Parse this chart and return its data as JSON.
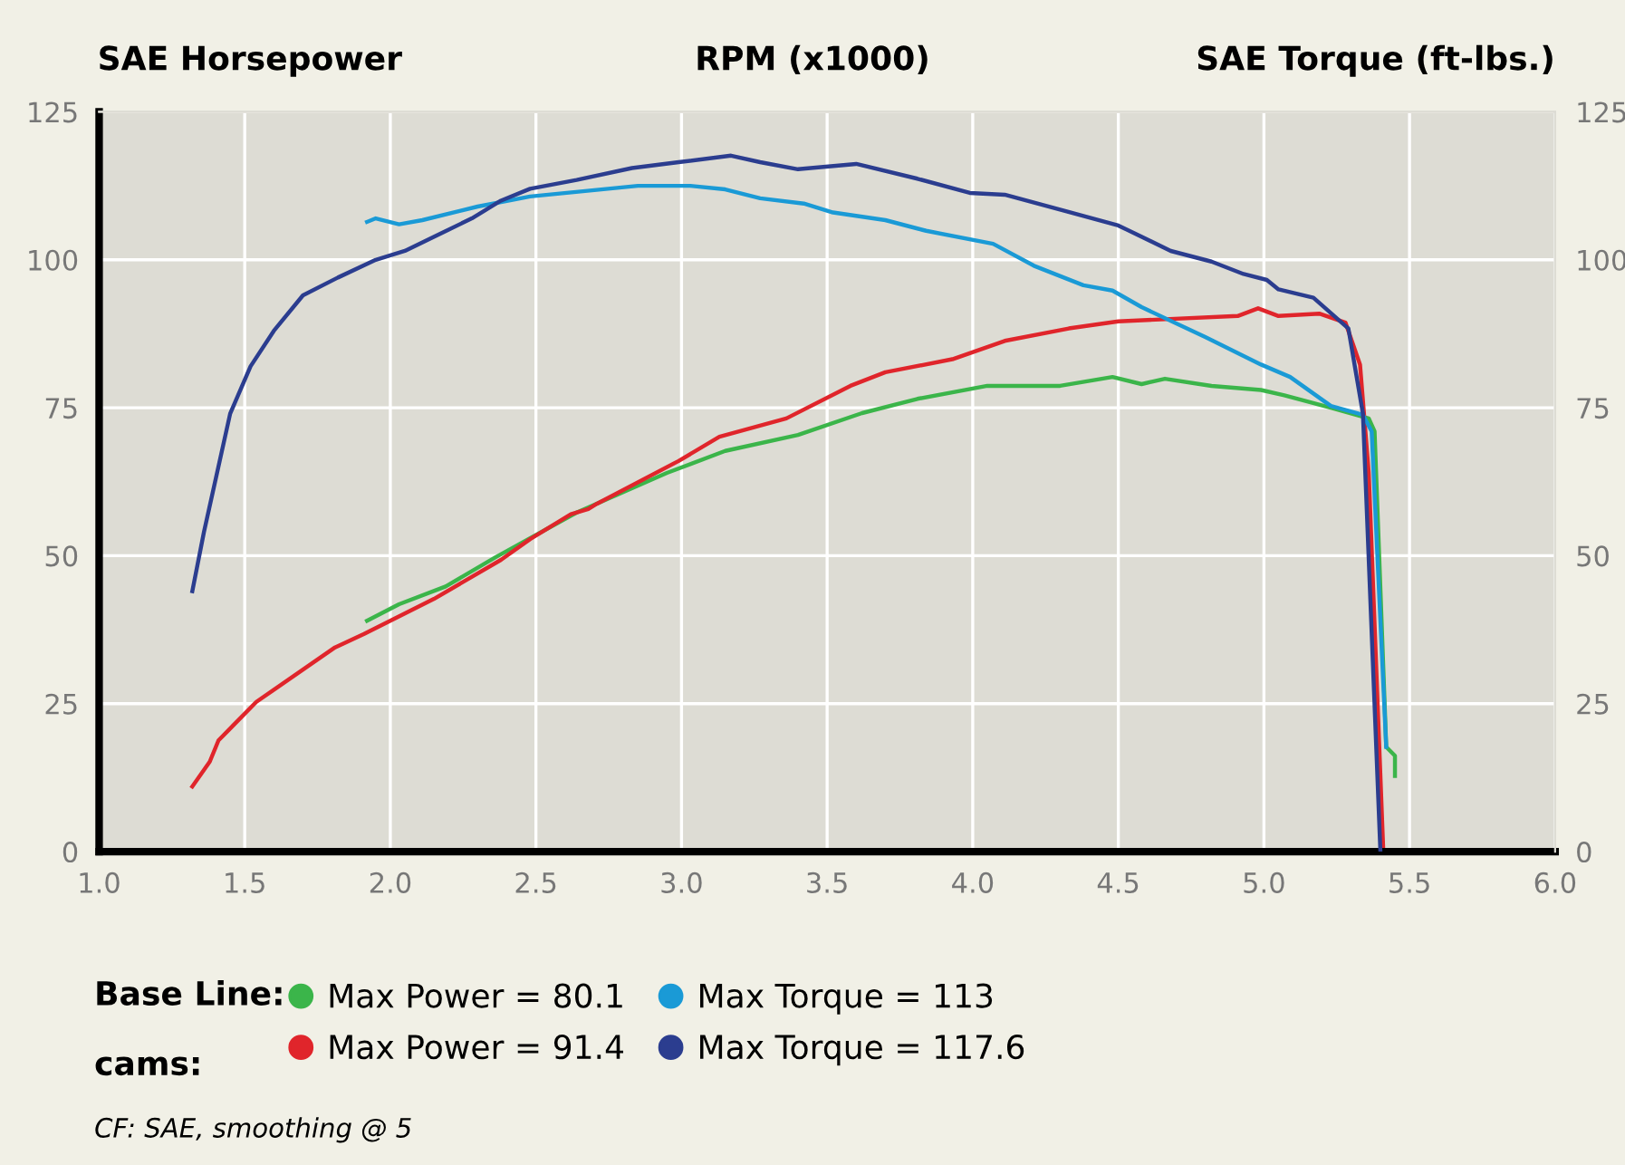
{
  "chart_data": {
    "type": "line",
    "xlabel": "RPM (x1000)",
    "ylabel": "SAE Horsepower",
    "y2label": "SAE Torque (ft-lbs.)",
    "xlim": [
      1.0,
      6.0
    ],
    "xticks": [
      {
        "value": 1.0,
        "label": "1.0"
      },
      {
        "value": 1.5,
        "label": "1.5"
      },
      {
        "value": 2.0,
        "label": "2.0"
      },
      {
        "value": 2.5,
        "label": "2.5"
      },
      {
        "value": 3.0,
        "label": "3.0"
      },
      {
        "value": 3.5,
        "label": "3.5"
      },
      {
        "value": 4.0,
        "label": "4.0"
      },
      {
        "value": 4.5,
        "label": "4.5"
      },
      {
        "value": 5.0,
        "label": "5.0"
      },
      {
        "value": 5.5,
        "label": "5.5"
      },
      {
        "value": 6.0,
        "label": "6.0"
      }
    ],
    "ylim": [
      0,
      125
    ],
    "yticks": [
      0,
      25,
      50,
      75,
      100,
      125
    ],
    "y2lim": [
      0,
      125
    ],
    "y2ticks": [
      0,
      25,
      50,
      75,
      100,
      125
    ],
    "grid": true,
    "legend": "bottom",
    "line_style": "solid",
    "annotations": [
      "Base Line:",
      "cams:",
      "CF: SAE, smoothing @ 5"
    ],
    "series": [
      {
        "name": "Max Power = 80.1",
        "color": "#3bb54a",
        "x": [
          1.92,
          2.03,
          2.19,
          2.36,
          2.64,
          2.95,
          3.15,
          3.4,
          3.62,
          3.81,
          4.05,
          4.3,
          4.48,
          4.58,
          4.66,
          4.82,
          4.99,
          5.07,
          5.23,
          5.36,
          5.38,
          5.42,
          5.45,
          5.45
        ],
        "values": [
          39,
          41.8,
          44.8,
          49.7,
          57.3,
          64,
          67.7,
          70.4,
          74.1,
          76.5,
          78.7,
          78.7,
          80.2,
          79,
          79.9,
          78.7,
          78,
          77.1,
          75,
          73.2,
          71,
          17.7,
          16.2,
          12.8
        ]
      },
      {
        "name": "Max Torque = 113",
        "color": "#1a9ad6",
        "axis": "y2",
        "x": [
          1.92,
          1.95,
          2.03,
          2.11,
          2.3,
          2.48,
          2.85,
          3.03,
          3.15,
          3.27,
          3.42,
          3.52,
          3.7,
          3.84,
          4.07,
          4.21,
          4.38,
          4.48,
          4.58,
          4.8,
          4.99,
          5.09,
          5.23,
          5.34,
          5.37,
          5.42
        ],
        "values": [
          106.4,
          107,
          106,
          106.7,
          109,
          110.7,
          112.5,
          112.5,
          111.9,
          110.4,
          109.5,
          108,
          106.7,
          104.9,
          102.7,
          99,
          95.7,
          94.8,
          92,
          86.9,
          82.3,
          80.2,
          75.3,
          73.8,
          71,
          17.7
        ]
      },
      {
        "name": "Max Power = 91.4",
        "color": "#e0252b",
        "x": [
          1.32,
          1.38,
          1.41,
          1.54,
          1.81,
          1.91,
          2.15,
          2.38,
          2.48,
          2.62,
          2.68,
          2.71,
          2.99,
          3.13,
          3.36,
          3.58,
          3.7,
          3.93,
          4.11,
          4.33,
          4.5,
          4.91,
          4.98,
          5.05,
          5.19,
          5.28,
          5.33,
          5.36,
          5.41
        ],
        "values": [
          11,
          15.2,
          18.8,
          25.3,
          34.5,
          36.8,
          42.7,
          49.3,
          52.8,
          57,
          57.9,
          58.8,
          66,
          70.1,
          73.2,
          78.7,
          81,
          83.2,
          86.3,
          88.4,
          89.6,
          90.5,
          91.8,
          90.5,
          90.9,
          89.4,
          82.3,
          64,
          0
        ]
      },
      {
        "name": "Max Torque = 117.6",
        "color": "#2b3d8f",
        "axis": "y2",
        "x": [
          1.32,
          1.36,
          1.45,
          1.52,
          1.6,
          1.7,
          1.82,
          1.95,
          2.05,
          2.28,
          2.38,
          2.48,
          2.64,
          2.83,
          2.99,
          3.17,
          3.27,
          3.4,
          3.6,
          3.81,
          3.99,
          4.11,
          4.32,
          4.5,
          4.68,
          4.82,
          4.93,
          5.01,
          5.05,
          5.17,
          5.29,
          5.34,
          5.4
        ],
        "values": [
          44,
          54,
          74,
          82,
          88,
          94,
          97,
          100,
          101.5,
          107,
          110,
          112,
          113.5,
          115.5,
          116.5,
          117.6,
          116.5,
          115.3,
          116.2,
          113.7,
          111.3,
          111,
          108.2,
          105.8,
          101.5,
          99.7,
          97.6,
          96.6,
          95,
          93.6,
          88.4,
          74,
          0
        ]
      }
    ]
  }
}
